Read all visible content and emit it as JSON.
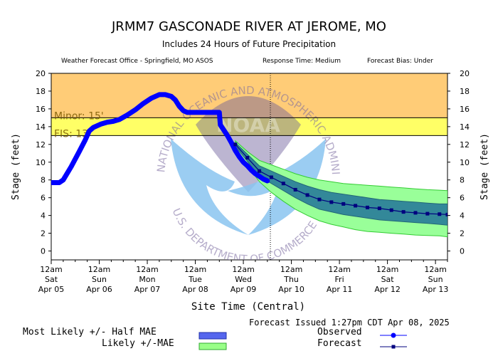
{
  "header": {
    "title": "JRMM7 GASCONADE RIVER AT JEROME, MO",
    "subtitle": "Includes  24 Hours of Future Precipitation",
    "wfo": "Weather Forecast Office - Springfield, MO ASOS",
    "response_time": "Response Time: Medium",
    "forecast_bias": "Forecast Bias:  Under"
  },
  "chart_data": {
    "type": "line",
    "ylabel": "Stage (feet)",
    "xlabel": "Site Time (Central)",
    "ylim": [
      -1,
      20
    ],
    "yticks": [
      "0",
      "2",
      "4",
      "6",
      "8",
      "10",
      "12",
      "14",
      "16",
      "18",
      "20"
    ],
    "xlim_hours": [
      0,
      198
    ],
    "xticks": [
      {
        "h": 0,
        "l1": "12am",
        "l2": "Sat",
        "l3": "Apr 05"
      },
      {
        "h": 24,
        "l1": "12am",
        "l2": "Sun",
        "l3": "Apr 06"
      },
      {
        "h": 48,
        "l1": "12am",
        "l2": "Mon",
        "l3": "Apr 07"
      },
      {
        "h": 72,
        "l1": "12am",
        "l2": "Tue",
        "l3": "Apr 08"
      },
      {
        "h": 96,
        "l1": "12am",
        "l2": "Wed",
        "l3": "Apr 09"
      },
      {
        "h": 120,
        "l1": "12am",
        "l2": "Thu",
        "l3": "Apr 10"
      },
      {
        "h": 144,
        "l1": "12am",
        "l2": "Fri",
        "l3": "Apr 11"
      },
      {
        "h": 168,
        "l1": "12am",
        "l2": "Sat",
        "l3": "Apr 12"
      },
      {
        "h": 192,
        "l1": "12am",
        "l2": "Sun",
        "l3": "Apr 13"
      }
    ],
    "thresholds": [
      {
        "name": "Minor",
        "label": "Minor: 15'",
        "value": 15,
        "color": "#FFFF66"
      },
      {
        "name": "FIS",
        "label": "FIS: 13'",
        "value": 13,
        "color": "#FFFF66"
      }
    ],
    "minor_band_color": "#FFCC77",
    "now_hour": 109.5,
    "observed": {
      "name": "Observed",
      "color": "#0000FF",
      "x": [
        0,
        4,
        6,
        10,
        14,
        17,
        19,
        21,
        23,
        25,
        28,
        31,
        34,
        38,
        42,
        46,
        50,
        54,
        57,
        60,
        62,
        64,
        66,
        68,
        70,
        74,
        78,
        82,
        84,
        84.5,
        86,
        88,
        90,
        92,
        94,
        96,
        98,
        100,
        102,
        104,
        106,
        108
      ],
      "y": [
        7.7,
        7.7,
        8.0,
        9.5,
        11.2,
        12.5,
        13.5,
        13.9,
        14.1,
        14.3,
        14.5,
        14.6,
        14.8,
        15.3,
        15.9,
        16.6,
        17.2,
        17.6,
        17.6,
        17.4,
        17.0,
        16.3,
        15.8,
        15.6,
        15.6,
        15.6,
        15.6,
        15.6,
        15.6,
        14.2,
        13.7,
        13.0,
        12.2,
        11.3,
        10.6,
        10.0,
        9.6,
        9.1,
        8.7,
        8.4,
        8.1,
        7.9
      ]
    },
    "forecast": {
      "name": "Forecast",
      "color": "#00007F",
      "x": [
        92,
        98,
        104,
        110,
        116,
        122,
        128,
        134,
        140,
        146,
        152,
        158,
        164,
        170,
        176,
        182,
        188,
        194,
        198
      ],
      "y": [
        12.0,
        10.5,
        9.0,
        8.3,
        7.6,
        6.9,
        6.3,
        5.8,
        5.5,
        5.3,
        5.1,
        4.9,
        4.8,
        4.6,
        4.4,
        4.3,
        4.2,
        4.15,
        4.1
      ]
    },
    "likely_band": {
      "name": "Likely +/-MAE",
      "color": "#99FF99",
      "upper": [
        12.4,
        11.2,
        10.2,
        9.7,
        9.2,
        8.7,
        8.3,
        8.0,
        7.8,
        7.6,
        7.5,
        7.4,
        7.3,
        7.2,
        7.1,
        7.0,
        6.9,
        6.85,
        6.8
      ],
      "lower": [
        11.6,
        9.6,
        7.8,
        6.6,
        5.6,
        4.7,
        4.0,
        3.4,
        3.0,
        2.7,
        2.4,
        2.2,
        2.1,
        2.0,
        1.9,
        1.8,
        1.75,
        1.7,
        1.6
      ]
    },
    "mae_band": {
      "name": "Most Likely +/- Half MAE",
      "color": "#338899",
      "upper": [
        12.2,
        10.9,
        9.6,
        9.0,
        8.4,
        7.8,
        7.3,
        6.9,
        6.6,
        6.4,
        6.2,
        6.0,
        5.8,
        5.7,
        5.6,
        5.5,
        5.4,
        5.3,
        5.3
      ],
      "lower": [
        11.8,
        10.1,
        8.4,
        7.6,
        6.8,
        6.0,
        5.3,
        4.7,
        4.4,
        4.1,
        3.9,
        3.7,
        3.5,
        3.4,
        3.3,
        3.2,
        3.1,
        3.0,
        2.9
      ]
    },
    "watermark": {
      "agency_text": "NATIONAL OCEANIC AND ATMOSPHERIC ADMINISTRATION",
      "department_text": "U.S. DEPARTMENT OF COMMERCE",
      "logo_text": "NOAA"
    }
  },
  "legend": {
    "mae_label": "Most Likely +/- Half MAE",
    "likely_label": "Likely +/-MAE",
    "observed_label": "Observed",
    "forecast_label": "Forecast"
  },
  "footer": {
    "issued": "Forecast Issued 1:27pm CDT Apr 08, 2025"
  }
}
